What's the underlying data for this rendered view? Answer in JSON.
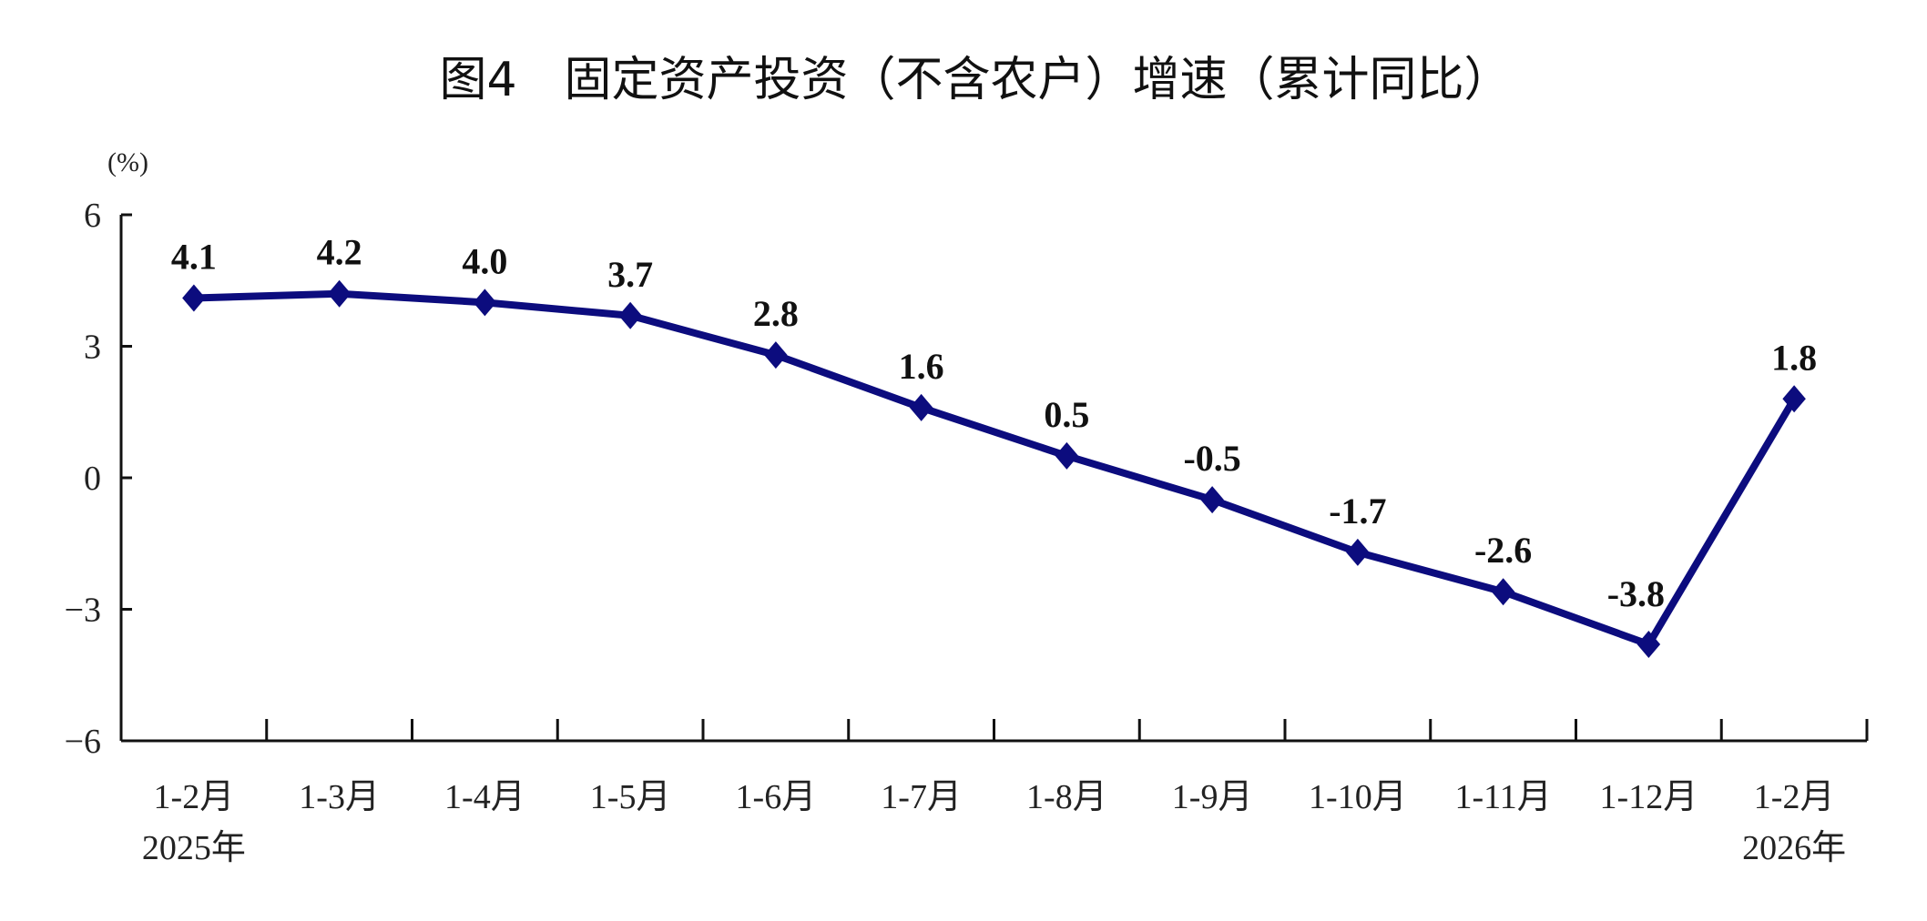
{
  "chart_data": {
    "type": "line",
    "title": "图4　固定资产投资（不含农户）增速（累计同比）",
    "ylabel": "(%)",
    "xlabel": "",
    "categories": [
      "1-2月",
      "1-3月",
      "1-4月",
      "1-5月",
      "1-6月",
      "1-7月",
      "1-8月",
      "1-9月",
      "1-10月",
      "1-11月",
      "1-12月",
      "1-2月"
    ],
    "category_sublabels": {
      "0": "2025年",
      "11": "2026年"
    },
    "values": [
      4.1,
      4.2,
      4.0,
      3.7,
      2.8,
      1.6,
      0.5,
      -0.5,
      -1.7,
      -2.6,
      -3.8,
      1.8
    ],
    "data_labels": [
      "4.1",
      "4.2",
      "4.0",
      "3.7",
      "2.8",
      "1.6",
      "0.5",
      "-0.5",
      "-1.7",
      "-2.6",
      "-3.8",
      "1.8"
    ],
    "ylim": [
      -6,
      6
    ],
    "yticks": [
      6,
      3,
      0,
      -3,
      -6
    ],
    "ytick_labels": [
      "6",
      "3",
      "0",
      "−3",
      "−6"
    ],
    "grid": false,
    "marker": "diamond",
    "line_color": "#0c0c7e"
  }
}
